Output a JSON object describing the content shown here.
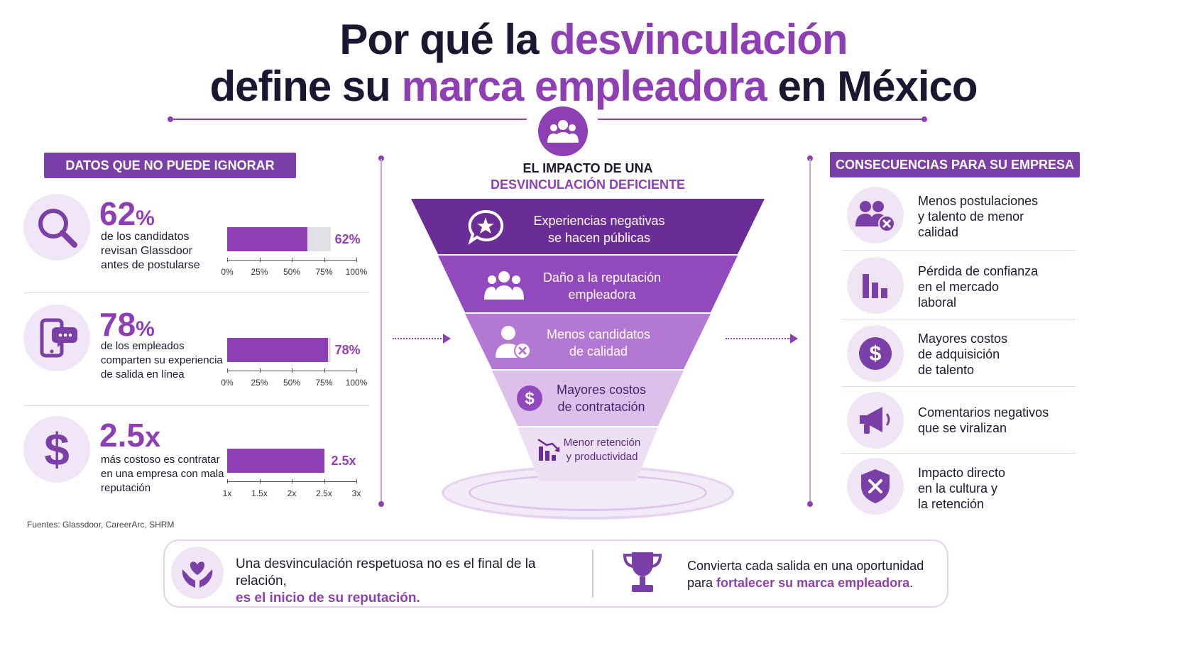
{
  "title": {
    "line1_a": "Por qué la ",
    "line1_hl": "desvinculación",
    "line2_a": "define su ",
    "line2_hl": "marca empleadora",
    "line2_b": " en México"
  },
  "left": {
    "banner": "DATOS QUE NO PUEDE IGNORAR",
    "stats": [
      {
        "icon": "search-icon",
        "number": "62",
        "unit": "%",
        "desc1": "de los candidatos",
        "desc2": "revisan Glassdoor",
        "desc3": "antes de postularse",
        "bar_fraction": 0.62,
        "bar_label": "62%",
        "ticks": [
          "0%",
          "25%",
          "50%",
          "75%",
          "100%"
        ]
      },
      {
        "icon": "phone-chat-icon",
        "number": "78",
        "unit": "%",
        "desc1": "de los empleados",
        "desc2": "comparten su experiencia",
        "desc3": "de salida en línea",
        "bar_fraction": 0.78,
        "bar_label": "78%",
        "ticks": [
          "0%",
          "25%",
          "50%",
          "75%",
          "100%"
        ]
      },
      {
        "icon": "dollar-icon",
        "number": "2.5",
        "unit": "x",
        "desc1": "más costoso es contratar",
        "desc2": "en una empresa con mala",
        "desc3": "reputación",
        "bar_fraction": 0.75,
        "bar_label": "2.5x",
        "ticks": [
          "1x",
          "1.5x",
          "2x",
          "2.5x",
          "3x"
        ]
      }
    ],
    "sources": "Fuentes: Glassdoor, CareerArc, SHRM"
  },
  "center": {
    "heading1": "EL IMPACTO DE UNA",
    "heading2": "DESVINCULACIÓN DEFICIENTE",
    "levels": [
      {
        "icon": "star-chat-icon",
        "l1": "Experiencias negativas",
        "l2": "se hacen públicas",
        "color": "#6a2d96"
      },
      {
        "icon": "group-icon",
        "l1": "Daño a la reputación",
        "l2": "empleadora",
        "color": "#9249bd"
      },
      {
        "icon": "user-x-icon",
        "l1": "Menos candidatos",
        "l2": "de calidad",
        "color": "#b278d2"
      },
      {
        "icon": "dollar-coin-icon",
        "l1": "Mayores costos",
        "l2": "de contratación",
        "color": "#dcc0ea"
      },
      {
        "icon": "decline-chart-icon",
        "l1": "Menor retención",
        "l2": "y productividad",
        "color": "#ede0f4"
      }
    ]
  },
  "right": {
    "banner": "CONSECUENCIAS PARA SU EMPRESA",
    "items": [
      {
        "icon": "users-x-icon",
        "l1": "Menos postulaciones",
        "l2": "y talento de menor",
        "l3": "calidad"
      },
      {
        "icon": "bar-decline-icon",
        "l1": "Pérdida de confianza",
        "l2": "en el mercado",
        "l3": "laboral"
      },
      {
        "icon": "dollar-circle-icon",
        "l1": "Mayores costos",
        "l2": "de adquisición",
        "l3": "de talento"
      },
      {
        "icon": "megaphone-icon",
        "l1": "Comentarios negativos",
        "l2": "que se viralizan",
        "l3": ""
      },
      {
        "icon": "shield-x-icon",
        "l1": "Impacto directo",
        "l2": "en la cultura y",
        "l3": "la retención"
      }
    ]
  },
  "bottom": {
    "left_icon": "heart-hands-icon",
    "left_l1": "Una desvinculación respetuosa no es el final de la relación,",
    "left_l2": "es el inicio de su reputación.",
    "right_icon": "trophy-icon",
    "right_l1": "Convierta cada salida en una oportunidad",
    "right_l2a": "para ",
    "right_l2b": "fortalecer su marca empleadora",
    "right_l2c": "."
  },
  "colors": {
    "accent": "#8e3fb3",
    "dark_accent": "#6a2d96",
    "text": "#1a1830"
  }
}
